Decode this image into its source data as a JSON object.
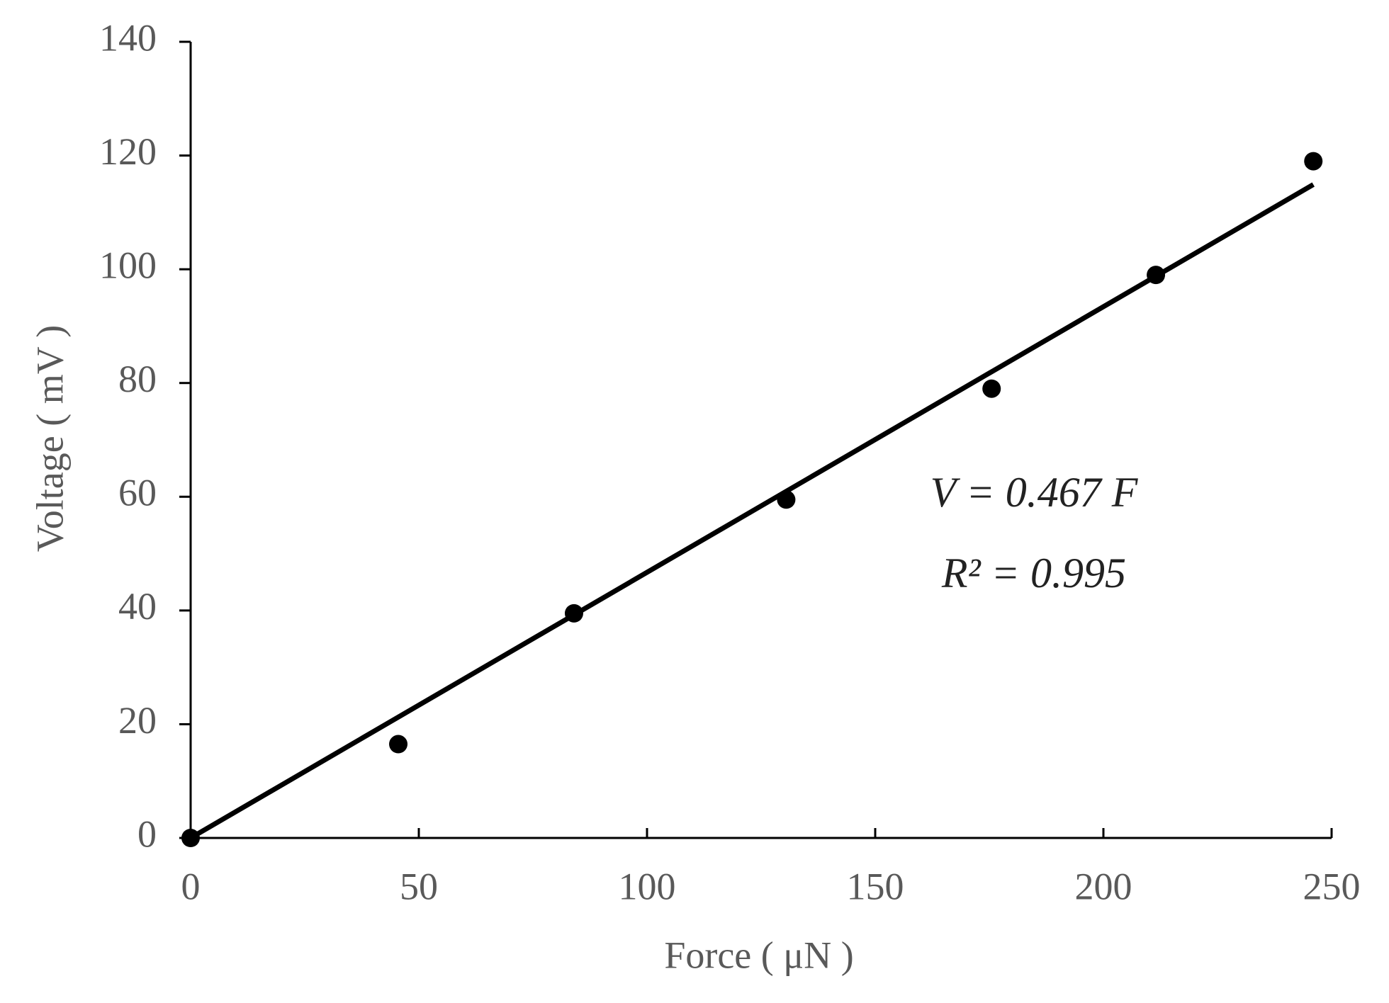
{
  "chart_data": {
    "type": "scatter",
    "x_label": "Force ( μN )",
    "y_label": "Voltage ( mV )",
    "annotations": [
      "V = 0.467 F",
      "R² = 0.995"
    ],
    "xlim": [
      0,
      250
    ],
    "xticks": [
      0,
      50,
      100,
      150,
      200,
      250
    ],
    "ylim": [
      0,
      140
    ],
    "yticks": [
      0,
      20,
      40,
      60,
      80,
      100,
      120,
      140
    ],
    "series": [
      {
        "type": "scatter",
        "color": "#000000",
        "x": [
          0,
          45.5,
          84,
          130.5,
          175.5,
          211.5,
          246
        ],
        "values": [
          0,
          16.5,
          39.5,
          59.5,
          79,
          99,
          119
        ]
      },
      {
        "type": "line",
        "color": "#000000",
        "x": [
          0,
          246
        ],
        "values": [
          0,
          114.9
        ]
      }
    ]
  }
}
